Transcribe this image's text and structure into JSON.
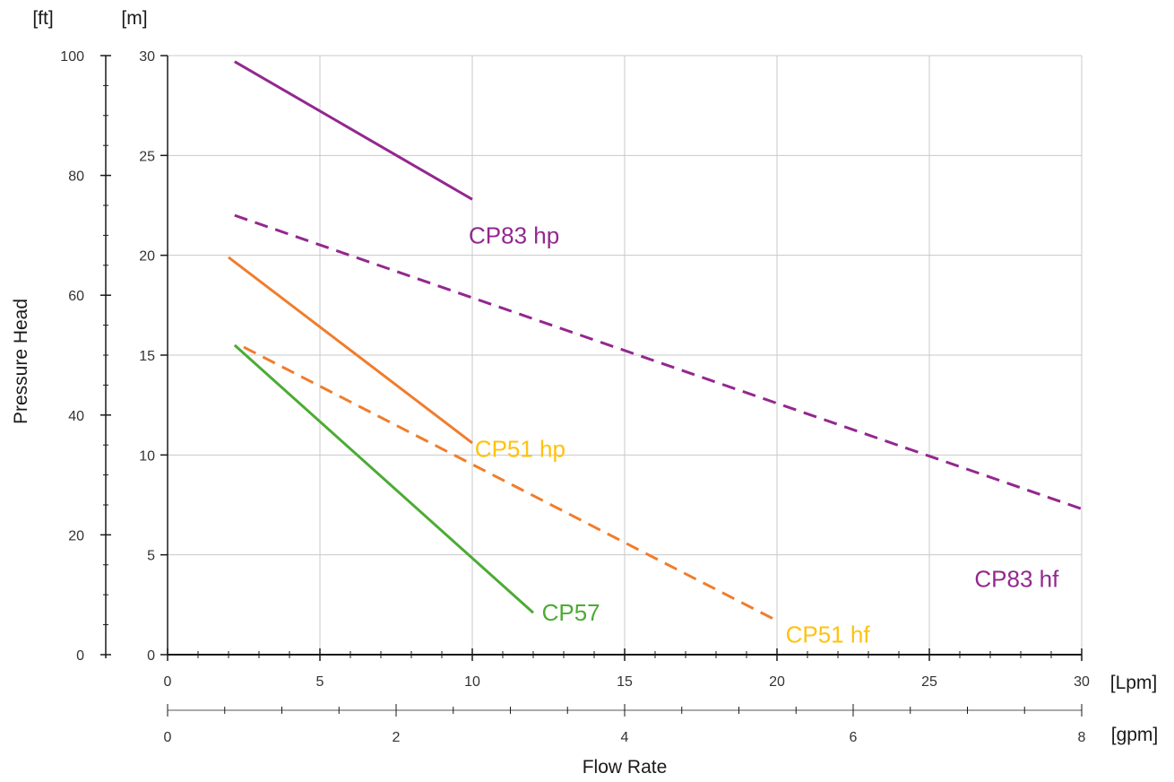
{
  "chart_data": {
    "type": "line",
    "xlabel": "Flow Rate",
    "ylabel": "Pressure Head",
    "x_unit": "[Lpm]",
    "x2_unit": "[gpm]",
    "y_unit": "[m]",
    "y2_unit": "[ft]",
    "xlim": [
      0,
      30
    ],
    "ylim": [
      0,
      30
    ],
    "x2lim": [
      0,
      8
    ],
    "y2lim": [
      0,
      100
    ],
    "x_ticks": [
      0,
      5,
      10,
      15,
      20,
      25,
      30
    ],
    "x2_ticks": [
      0,
      2,
      4,
      6,
      8
    ],
    "y_ticks": [
      0,
      5,
      10,
      15,
      20,
      25,
      30
    ],
    "y2_ticks": [
      0,
      20,
      40,
      60,
      80,
      100
    ],
    "grid": true,
    "series": [
      {
        "name": "CP83 hp",
        "color": "#93278f",
        "dash": "solid",
        "x": [
          2.2,
          10.0
        ],
        "y": [
          29.7,
          22.8
        ],
        "label_at": [
          10,
          21.0
        ]
      },
      {
        "name": "CP83 hf",
        "color": "#93278f",
        "dash": "dashed",
        "x": [
          2.2,
          30.0
        ],
        "y": [
          22.0,
          7.3
        ],
        "label_at": [
          26.6,
          3.8
        ]
      },
      {
        "name": "CP51 hp",
        "color": "#f07d2d",
        "dash": "solid",
        "x": [
          2.0,
          10.0
        ],
        "y": [
          19.9,
          10.6
        ],
        "label_at": [
          10.2,
          10.3
        ],
        "label_color": "#ffc20e"
      },
      {
        "name": "CP51 hf",
        "color": "#f07d2d",
        "dash": "dashed",
        "x": [
          2.5,
          20.0
        ],
        "y": [
          15.4,
          1.7
        ],
        "label_at": [
          20.4,
          1.0
        ],
        "label_color": "#ffc20e"
      },
      {
        "name": "CP57",
        "color": "#4cab34",
        "dash": "solid",
        "x": [
          2.2,
          12.0
        ],
        "y": [
          15.5,
          2.1
        ],
        "label_at": [
          12.4,
          2.1
        ]
      }
    ]
  }
}
